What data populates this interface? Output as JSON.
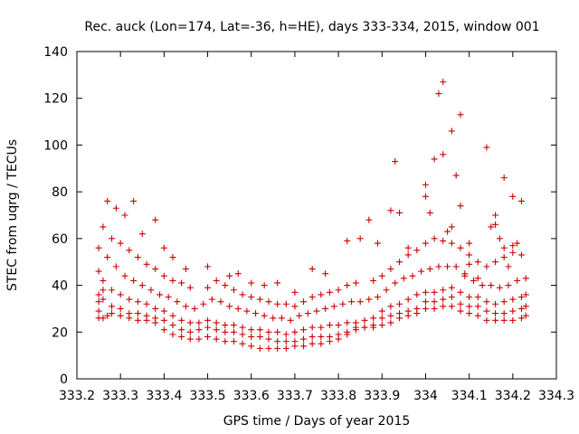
{
  "chart_data": {
    "type": "scatter",
    "title": "Rec. auck (Lon=174, Lat=-36, h=HE), days 333-334, 2015, window 001",
    "xlabel": "GPS time / Days of year 2015",
    "ylabel": "STEC from uqrg / TECUs",
    "xlim": [
      333.2,
      334.3
    ],
    "ylim": [
      0,
      140
    ],
    "xticks": [
      "333.2",
      "333.3",
      "333.4",
      "333.5",
      "333.6",
      "333.7",
      "333.8",
      "333.9",
      "334",
      "334.1",
      "334.2",
      "334.3"
    ],
    "yticks": [
      "0",
      "20",
      "40",
      "60",
      "80",
      "100",
      "120",
      "140"
    ],
    "grid": false,
    "legend": "none",
    "marker": "plus",
    "color": "#cc0000",
    "series": [
      {
        "x": [
          333.25,
          333.25,
          333.25,
          333.26,
          333.26,
          333.27,
          333.28,
          333.3,
          333.32,
          333.34,
          333.36,
          333.38,
          333.4,
          333.42,
          333.44,
          333.46,
          333.48,
          333.5,
          333.52,
          333.54,
          333.56,
          333.58,
          333.6,
          333.62,
          333.64,
          333.66,
          333.68,
          333.7,
          333.72,
          333.74,
          333.76,
          333.78,
          333.8,
          333.82,
          333.84,
          333.86,
          333.88,
          333.9,
          333.92,
          333.94,
          333.96,
          333.98,
          334.0,
          334.02,
          334.04,
          334.06,
          334.08,
          334.1,
          334.12,
          334.14,
          334.16,
          334.18,
          334.2,
          334.22,
          334.23
        ],
        "y": [
          26,
          29,
          33,
          26,
          38,
          27,
          28,
          27,
          26,
          25,
          25,
          24,
          21,
          19,
          18,
          17,
          17,
          18,
          17,
          16,
          16,
          15,
          14,
          13,
          13,
          13,
          13,
          14,
          14,
          15,
          15,
          16,
          17,
          19,
          21,
          22,
          22,
          23,
          24,
          26,
          27,
          28,
          30,
          30,
          31,
          31,
          29,
          28,
          27,
          25,
          25,
          25,
          25,
          26,
          27
        ]
      },
      {
        "x": [
          333.25,
          333.26,
          333.28,
          333.3,
          333.32,
          333.34,
          333.36,
          333.38,
          333.4,
          333.42,
          333.44,
          333.46,
          333.48,
          333.5,
          333.52,
          333.54,
          333.56,
          333.58,
          333.6,
          333.62,
          333.64,
          333.66,
          333.68,
          333.7,
          333.72,
          333.74,
          333.76,
          333.78,
          333.8,
          333.82,
          333.84,
          333.86,
          333.88,
          333.9,
          333.92,
          333.94,
          333.96,
          333.98,
          334.0,
          334.02,
          334.04,
          334.06,
          334.08,
          334.1,
          334.12,
          334.14,
          334.16,
          334.18,
          334.2,
          334.22,
          334.23
        ],
        "y": [
          36,
          34,
          31,
          30,
          28,
          28,
          27,
          26,
          25,
          23,
          21,
          20,
          21,
          22,
          21,
          20,
          20,
          19,
          18,
          18,
          17,
          16,
          16,
          16,
          17,
          18,
          18,
          18,
          19,
          20,
          22,
          22,
          23,
          26,
          27,
          28,
          29,
          30,
          33,
          33,
          34,
          35,
          32,
          31,
          31,
          29,
          28,
          28,
          29,
          30,
          31
        ]
      },
      {
        "x": [
          333.25,
          333.26,
          333.28,
          333.3,
          333.32,
          333.34,
          333.36,
          333.38,
          333.4,
          333.42,
          333.44,
          333.46,
          333.48,
          333.5,
          333.52,
          333.54,
          333.56,
          333.58,
          333.6,
          333.62,
          333.64,
          333.66,
          333.68,
          333.7,
          333.72,
          333.74,
          333.76,
          333.78,
          333.8,
          333.82,
          333.84,
          333.86,
          333.88,
          333.9,
          333.92,
          333.94,
          333.96,
          333.98,
          334.0,
          334.02,
          334.04,
          334.06,
          334.08,
          334.1,
          334.12,
          334.14,
          334.16,
          334.18,
          334.2,
          334.22,
          334.23
        ],
        "y": [
          46,
          42,
          38,
          36,
          34,
          33,
          32,
          30,
          29,
          27,
          25,
          24,
          24,
          25,
          24,
          23,
          23,
          22,
          21,
          21,
          20,
          20,
          19,
          20,
          21,
          22,
          22,
          23,
          23,
          24,
          24,
          25,
          26,
          29,
          31,
          32,
          34,
          36,
          37,
          37,
          38,
          39,
          37,
          35,
          35,
          33,
          32,
          33,
          34,
          35,
          36
        ]
      },
      {
        "x": [
          333.25,
          333.27,
          333.29,
          333.31,
          333.33,
          333.35,
          333.37,
          333.39,
          333.41,
          333.43,
          333.45,
          333.47,
          333.49,
          333.51,
          333.53,
          333.55,
          333.57,
          333.59,
          333.61,
          333.63,
          333.65,
          333.67,
          333.69,
          333.71,
          333.73,
          333.75,
          333.77,
          333.79,
          333.81,
          333.83,
          333.85,
          333.87,
          333.89,
          333.91,
          333.93,
          333.95,
          333.97,
          333.99,
          334.01,
          334.03,
          334.05,
          334.07,
          334.09,
          334.11,
          334.13,
          334.15,
          334.17,
          334.19,
          334.21,
          334.23
        ],
        "y": [
          56,
          52,
          48,
          44,
          42,
          40,
          38,
          36,
          35,
          33,
          31,
          30,
          32,
          34,
          33,
          31,
          30,
          29,
          28,
          27,
          26,
          26,
          25,
          27,
          28,
          29,
          30,
          31,
          32,
          33,
          33,
          34,
          35,
          38,
          41,
          43,
          44,
          46,
          47,
          48,
          48,
          48,
          45,
          42,
          40,
          40,
          39,
          40,
          42,
          43
        ]
      },
      {
        "x": [
          333.26,
          333.28,
          333.3,
          333.32,
          333.34,
          333.36,
          333.38,
          333.4,
          333.42,
          333.44,
          333.46,
          333.5,
          333.52,
          333.54,
          333.56,
          333.58,
          333.6,
          333.62,
          333.64,
          333.66,
          333.68,
          333.7,
          333.72,
          333.74,
          333.76,
          333.78,
          333.8,
          333.82,
          333.84,
          333.88,
          333.9,
          333.92,
          333.94,
          333.96,
          333.98,
          334.0,
          334.02,
          334.04,
          334.06,
          334.08,
          334.1,
          334.12,
          334.14,
          334.16,
          334.18,
          334.2,
          334.22
        ],
        "y": [
          65,
          60,
          58,
          55,
          52,
          49,
          47,
          44,
          42,
          41,
          39,
          39,
          42,
          40,
          38,
          36,
          35,
          34,
          33,
          32,
          32,
          31,
          33,
          35,
          36,
          37,
          38,
          40,
          41,
          42,
          44,
          47,
          50,
          53,
          55,
          58,
          60,
          59,
          58,
          56,
          53,
          50,
          48,
          50,
          52,
          54,
          53
        ]
      },
      {
        "x": [
          333.27,
          333.29,
          333.31,
          333.33,
          333.35,
          333.38,
          333.4,
          333.42,
          333.45,
          333.5,
          333.55,
          333.57,
          333.6,
          333.63,
          333.66,
          333.7,
          333.74,
          333.77,
          333.82,
          333.85,
          333.87,
          333.89,
          333.92,
          333.94,
          333.96,
          334.0,
          334.02,
          334.04,
          334.06,
          334.08,
          334.1,
          334.14,
          334.16,
          334.18,
          334.2,
          334.22
        ],
        "y": [
          76,
          73,
          70,
          76,
          62,
          68,
          56,
          52,
          47,
          48,
          44,
          45,
          41,
          40,
          41,
          37,
          47,
          45,
          59,
          60,
          68,
          58,
          72,
          71,
          56,
          78,
          94,
          96,
          106,
          113,
          58,
          99,
          66,
          86,
          78,
          76
        ]
      },
      {
        "x": [
          333.93,
          334.0,
          334.01,
          334.03,
          334.04,
          334.05,
          334.06,
          334.07,
          334.08,
          334.09,
          334.1,
          334.12,
          334.15,
          334.16,
          334.17,
          334.18,
          334.19,
          334.2,
          334.21
        ],
        "y": [
          93,
          83,
          71,
          122,
          127,
          63,
          65,
          87,
          74,
          44,
          49,
          43,
          65,
          70,
          60,
          56,
          48,
          57,
          58
        ]
      }
    ]
  }
}
